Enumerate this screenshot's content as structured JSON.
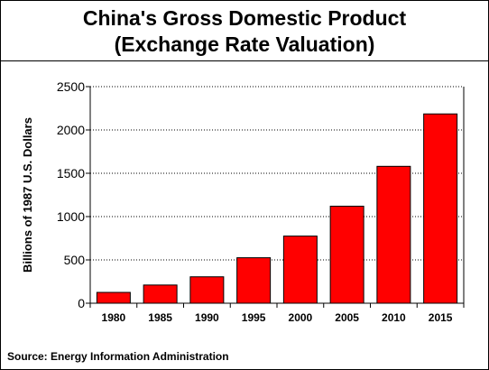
{
  "title_lines": [
    "China's Gross Domestic Product",
    "(Exchange Rate Valuation)"
  ],
  "source": "Source: Energy Information Administration",
  "colors": {
    "bar_fill": "#ff0000",
    "bar_stroke": "#000000",
    "grid": "#000000"
  },
  "chart_data": {
    "type": "bar",
    "title": "China's Gross Domestic Product (Exchange Rate Valuation)",
    "ylabel": "Billions of 1987 U.S. Dollars",
    "xlabel": "",
    "categories": [
      "1980",
      "1985",
      "1990",
      "1995",
      "2000",
      "2005",
      "2010",
      "2015"
    ],
    "values": [
      125,
      210,
      305,
      525,
      775,
      1120,
      1580,
      2185
    ],
    "ylim": [
      0,
      2500
    ],
    "yticks": [
      "0",
      "500",
      "1000",
      "1500",
      "2000",
      "2500"
    ],
    "grid": "horizontal dotted",
    "legend": "none"
  }
}
